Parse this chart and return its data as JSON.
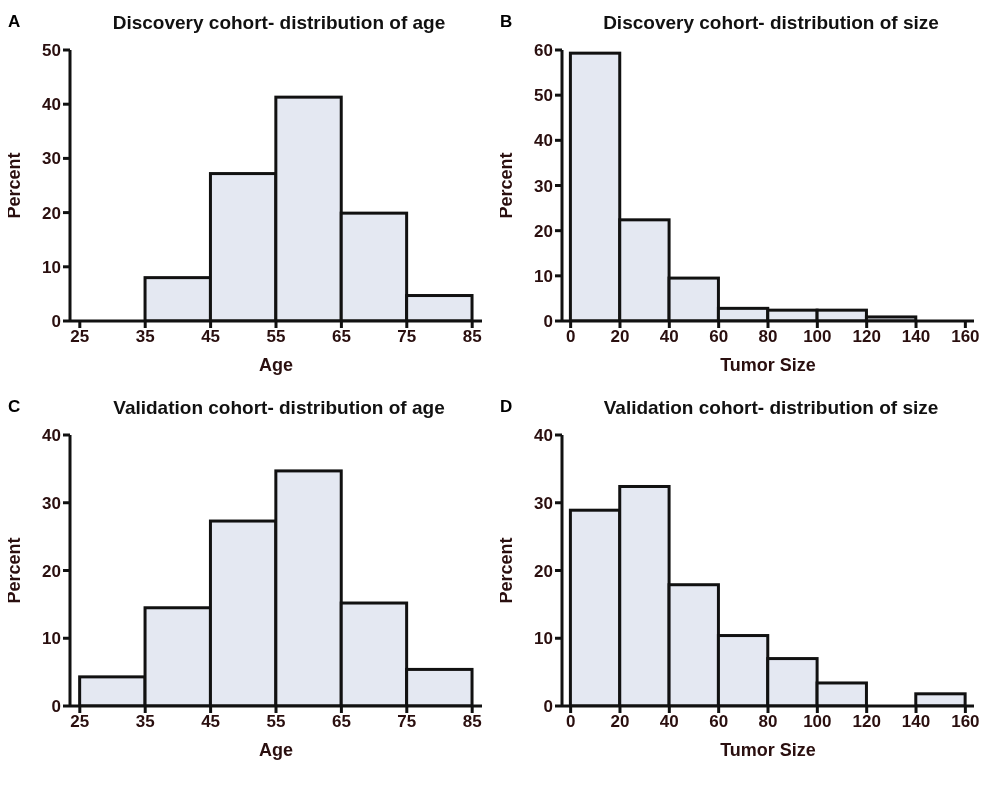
{
  "chart_data": [
    {
      "type": "histogram",
      "title": "Discovery cohort- distribution of age",
      "annotations": [
        "A"
      ],
      "xlabel": "Age",
      "ylabel": "Percent",
      "color": "#e4e8f2",
      "bins": [
        35,
        45,
        55,
        65,
        75,
        85
      ],
      "values": [
        8,
        27.2,
        41.3,
        19.9,
        4.7
      ],
      "xlim": [
        23.5,
        86.5
      ],
      "xticks": [
        25,
        35,
        45,
        55,
        65,
        75,
        85
      ],
      "ylim": [
        0,
        50
      ],
      "yticks": [
        0,
        10,
        20,
        30,
        40,
        50
      ],
      "grid": false,
      "legend": false
    },
    {
      "type": "histogram",
      "title": "Discovery cohort- distribution of size",
      "annotations": [
        "B"
      ],
      "xlabel": "Tumor Size",
      "ylabel": "Percent",
      "color": "#e4e8f2",
      "bins": [
        0,
        20,
        40,
        60,
        80,
        100,
        120,
        140
      ],
      "values": [
        59.3,
        22.4,
        9.5,
        2.8,
        2.4,
        2.4,
        0.9
      ],
      "xlim": [
        -3.5,
        163.5
      ],
      "xticks": [
        0,
        20,
        40,
        60,
        80,
        100,
        120,
        140,
        160
      ],
      "ylim": [
        0,
        60
      ],
      "yticks": [
        0,
        10,
        20,
        30,
        40,
        50,
        60
      ],
      "grid": false,
      "legend": false
    },
    {
      "type": "histogram",
      "title": "Validation cohort- distribution of age",
      "annotations": [
        "C"
      ],
      "xlabel": "Age",
      "ylabel": "Percent",
      "color": "#e4e8f2",
      "bins": [
        25,
        35,
        45,
        55,
        65,
        75,
        85
      ],
      "values": [
        4.3,
        14.5,
        27.3,
        34.7,
        15.2,
        5.4
      ],
      "xlim": [
        23.5,
        86.5
      ],
      "xticks": [
        25,
        35,
        45,
        55,
        65,
        75,
        85
      ],
      "ylim": [
        0,
        40
      ],
      "yticks": [
        0,
        10,
        20,
        30,
        40
      ],
      "grid": false,
      "legend": false
    },
    {
      "type": "histogram",
      "title": "Validation cohort- distribution of size",
      "annotations": [
        "D"
      ],
      "xlabel": "Tumor Size",
      "ylabel": "Percent",
      "color": "#e4e8f2",
      "bins": [
        0,
        20,
        40,
        60,
        80,
        100,
        120,
        140,
        160
      ],
      "values": [
        28.9,
        32.4,
        17.9,
        10.4,
        7,
        3.4,
        0,
        1.8
      ],
      "xlim": [
        -3.5,
        163.5
      ],
      "xticks": [
        0,
        20,
        40,
        60,
        80,
        100,
        120,
        140,
        160
      ],
      "ylim": [
        0,
        40
      ],
      "yticks": [
        0,
        10,
        20,
        30,
        40
      ],
      "grid": false,
      "legend": false
    }
  ]
}
